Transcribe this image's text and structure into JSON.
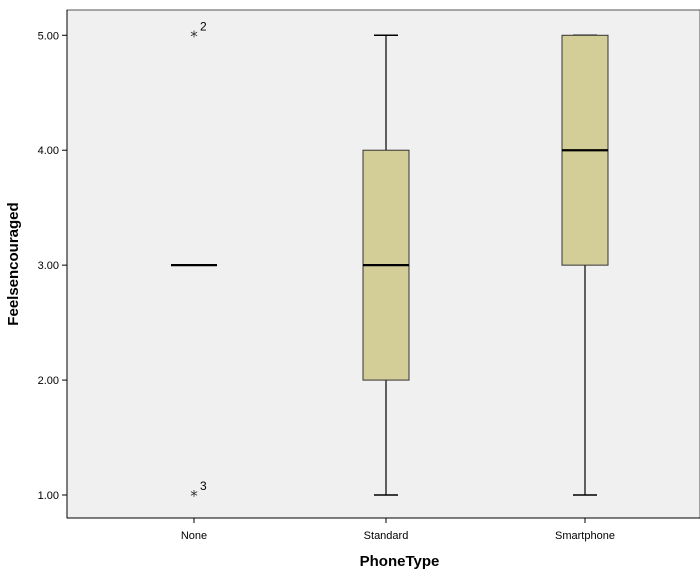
{
  "chart_data": {
    "type": "boxplot",
    "title": "",
    "xlabel": "PhoneType",
    "ylabel": "Feelsencouraged",
    "ylim": [
      0.8,
      5.22
    ],
    "yticks": [
      "1.00",
      "2.00",
      "3.00",
      "4.00",
      "5.00"
    ],
    "ytick_values": [
      1,
      2,
      3,
      4,
      5
    ],
    "categories": [
      "None",
      "Standard",
      "Smartphone"
    ],
    "boxes": [
      {
        "category": "None",
        "whisker_low": 3,
        "q1": 3,
        "median": 3,
        "q3": 3,
        "whisker_high": 3,
        "outliers": [
          {
            "value": 5,
            "label": "2"
          },
          {
            "value": 1,
            "label": "3"
          }
        ]
      },
      {
        "category": "Standard",
        "whisker_low": 1,
        "q1": 2,
        "median": 3,
        "q3": 4,
        "whisker_high": 5,
        "outliers": []
      },
      {
        "category": "Smartphone",
        "whisker_low": 1,
        "q1": 3,
        "median": 4,
        "q3": 5,
        "whisker_high": 5,
        "outliers": []
      }
    ],
    "grid": false,
    "colors": {
      "plot_background": "#f0f0f0",
      "box_fill": "#d3ce97",
      "box_stroke": "#333333",
      "median": "#000000"
    }
  }
}
